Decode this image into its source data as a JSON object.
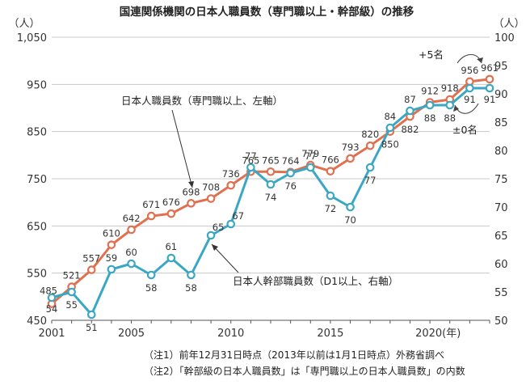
{
  "chart_data": {
    "type": "line",
    "title": "国連関係機関の日本人職員数（専門職以上・幹部級）の推移",
    "y_left_unit": "（人）",
    "y_right_unit": "（人）",
    "ylim_left": [
      450,
      1050
    ],
    "ylim_right": [
      50,
      100
    ],
    "y_left_ticks": [
      "450",
      "550",
      "650",
      "750",
      "850",
      "950",
      "1,050"
    ],
    "y_right_ticks": [
      "50",
      "55",
      "60",
      "65",
      "70",
      "75",
      "80",
      "85",
      "90",
      "95",
      "100"
    ],
    "x_ticks": [
      "2001",
      "2005",
      "2010",
      "2015",
      "2020(年)"
    ],
    "x": [
      2001,
      2002,
      2003,
      2004,
      2005,
      2006,
      2007,
      2008,
      2009,
      2010,
      2011,
      2012,
      2013,
      2014,
      2015,
      2016,
      2017,
      2018,
      2019,
      2020,
      2021,
      2022
    ],
    "series": [
      {
        "name": "日本人職員数（専門職以上、左軸）",
        "axis": "left",
        "color": "#e07050",
        "values": [
          485,
          521,
          557,
          610,
          642,
          671,
          676,
          698,
          708,
          736,
          765,
          765,
          764,
          779,
          766,
          793,
          820,
          850,
          882,
          912,
          918,
          956
        ]
      },
      {
        "name": "日本人幹部職員数（D1以上、右軸）",
        "axis": "right",
        "color": "#3aa7c4",
        "values": [
          54,
          55,
          51,
          59,
          60,
          58,
          61,
          58,
          65,
          67,
          77,
          74,
          76,
          77,
          72,
          70,
          77,
          84,
          87,
          88,
          88,
          91
        ]
      }
    ],
    "extra_point": {
      "x": 2023,
      "left": 961,
      "right": 91
    },
    "annotations": {
      "plus": "+5名",
      "zero": "±0名"
    },
    "notes": [
      "（注1）前年12月31日時点（2013年以前は1月1日時点）外務省調べ",
      "（注2）「幹部級の日本人職員数」は「専門職以上の日本人職員数」の内数"
    ]
  }
}
